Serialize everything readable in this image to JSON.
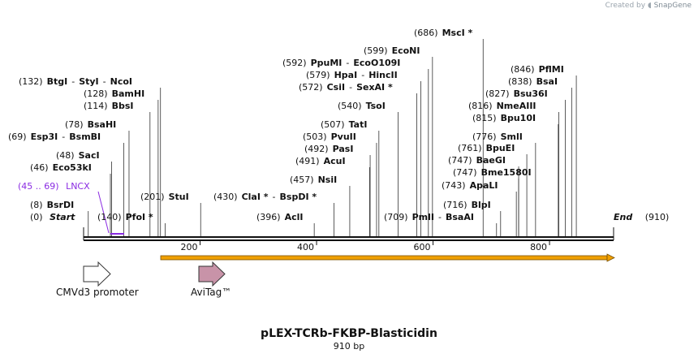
{
  "credit": {
    "prefix": "Created by",
    "brand": "SnapGene"
  },
  "map": {
    "title": "pLEX-TCRb-FKBP-Blasticidin",
    "length_label": "910 bp",
    "length": 910,
    "start_label": "Start",
    "end_label": "End",
    "start_pos": "(0)",
    "end_pos": "(910)"
  },
  "ticks": [
    200,
    400,
    600,
    800
  ],
  "sites": [
    {
      "pos": "(8)",
      "name": "BsrDI",
      "bp": 8
    },
    {
      "pos": "(46)",
      "name": "Eco53kI",
      "bp": 46
    },
    {
      "pos": "(48)",
      "name": "SacI",
      "bp": 48
    },
    {
      "pos": "(69)",
      "name": "Esp3I",
      "name2": "BsmBI",
      "bp": 69
    },
    {
      "pos": "(78)",
      "name": "BsaHI",
      "bp": 78
    },
    {
      "pos": "(114)",
      "name": "BbsI",
      "bp": 114
    },
    {
      "pos": "(128)",
      "name": "BamHI",
      "bp": 128
    },
    {
      "pos": "(132)",
      "name": "BtgI",
      "name2": "StyI",
      "name3": "NcoI",
      "bp": 132
    },
    {
      "pos": "(140)",
      "name": "PfoI *",
      "bp": 140
    },
    {
      "pos": "(201)",
      "name": "StuI",
      "bp": 201
    },
    {
      "pos": "(396)",
      "name": "AclI",
      "bp": 396
    },
    {
      "pos": "(430)",
      "name": "ClaI *",
      "name2": "BspDI *",
      "bp": 430
    },
    {
      "pos": "(457)",
      "name": "NsiI",
      "bp": 457
    },
    {
      "pos": "(491)",
      "name": "AcuI",
      "bp": 491
    },
    {
      "pos": "(492)",
      "name": "PasI",
      "bp": 492
    },
    {
      "pos": "(503)",
      "name": "PvuII",
      "bp": 503
    },
    {
      "pos": "(507)",
      "name": "TatI",
      "bp": 507
    },
    {
      "pos": "(540)",
      "name": "TsoI",
      "bp": 540
    },
    {
      "pos": "(572)",
      "name": "CsiI",
      "name2": "SexAI *",
      "bp": 572
    },
    {
      "pos": "(579)",
      "name": "HpaI",
      "name2": "HincII",
      "bp": 579
    },
    {
      "pos": "(592)",
      "name": "PpuMI",
      "name2": "EcoO109I",
      "bp": 592
    },
    {
      "pos": "(599)",
      "name": "EcoNI",
      "bp": 599
    },
    {
      "pos": "(686)",
      "name": "MscI *",
      "bp": 686
    },
    {
      "pos": "(709)",
      "name": "PmlI",
      "name2": "BsaAI",
      "bp": 709
    },
    {
      "pos": "(716)",
      "name": "BlpI",
      "bp": 716
    },
    {
      "pos": "(743)",
      "name": "ApaLI",
      "bp": 743
    },
    {
      "pos": "(747)",
      "name": "Bme1580I",
      "bp": 747
    },
    {
      "pos": "(747)",
      "name": "BaeGI",
      "bp": 747
    },
    {
      "pos": "(761)",
      "name": "BpuEI",
      "bp": 761
    },
    {
      "pos": "(776)",
      "name": "SmlI",
      "bp": 776
    },
    {
      "pos": "(815)",
      "name": "Bpu10I",
      "bp": 815
    },
    {
      "pos": "(816)",
      "name": "NmeAIII",
      "bp": 816
    },
    {
      "pos": "(827)",
      "name": "Bsu36I",
      "bp": 827
    },
    {
      "pos": "(838)",
      "name": "BsaI",
      "bp": 838
    },
    {
      "pos": "(846)",
      "name": "PflMI",
      "bp": 846
    }
  ],
  "lncx": {
    "range": "(45 .. 69)",
    "name": "LNCX"
  },
  "features": [
    {
      "name": "CMVd3 promoter",
      "color": "#ffffff"
    },
    {
      "name": "AviTag™",
      "color": "#c893a8"
    }
  ],
  "orf_color": "#f0a000"
}
